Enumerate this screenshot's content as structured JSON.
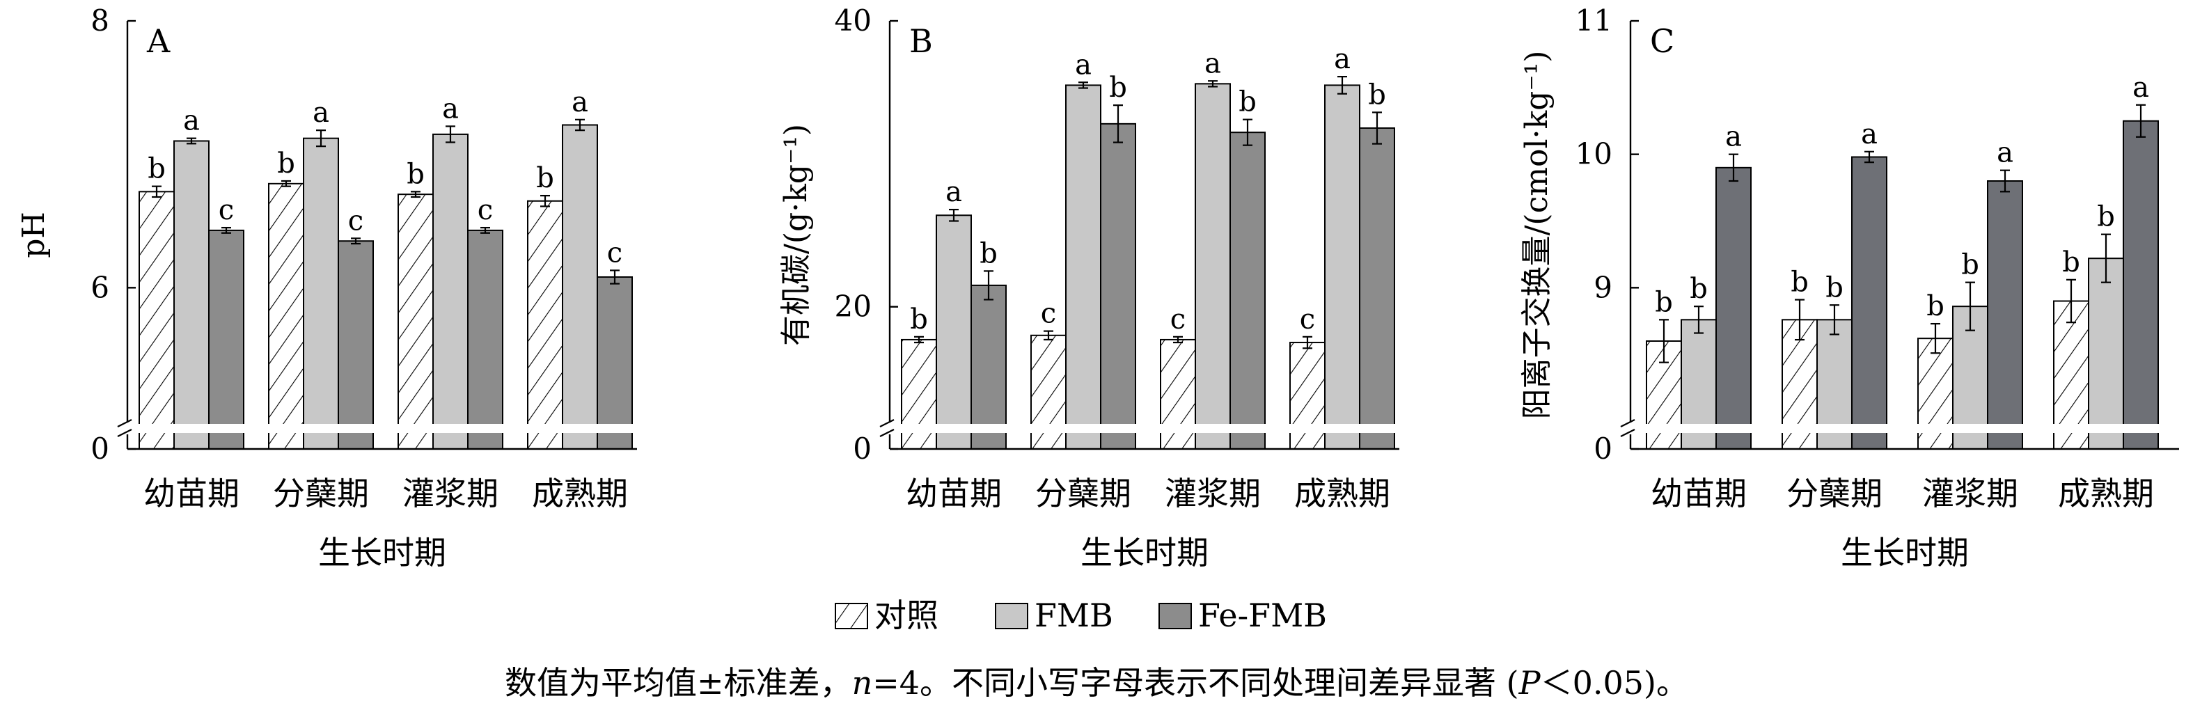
{
  "legend": [
    {
      "label": "对照",
      "style": "hatch"
    },
    {
      "label": "FMB",
      "color": "#c8c8c8"
    },
    {
      "label": "Fe-FMB",
      "color": "#8c8c8c"
    }
  ],
  "caption": {
    "p1": "数值为平均值±标准差，",
    "n_var": "n",
    "p2": "=4。不同小写字母表示不同处理间差异显著 (",
    "p_var": "P",
    "p3": "＜0.05)。"
  },
  "chart_data": [
    {
      "type": "bar",
      "panel": "A",
      "ylabel": "pH",
      "xlabel": "生长时期",
      "categories": [
        "幼苗期",
        "分蘖期",
        "灌浆期",
        "成熟期"
      ],
      "yticks": [
        "0",
        "6",
        "8"
      ],
      "scale": {
        "break_value": 0,
        "low": 5.0,
        "high": 8.0
      },
      "series_colors": [
        "#ffffff",
        "#c8c8c8",
        "#8c8c8c"
      ],
      "series": [
        {
          "name": "对照",
          "values": [
            6.72,
            6.78,
            6.7,
            6.65
          ],
          "errors": [
            0.04,
            0.02,
            0.02,
            0.04
          ],
          "letters": [
            "b",
            "b",
            "b",
            "b"
          ]
        },
        {
          "name": "FMB",
          "values": [
            7.1,
            7.12,
            7.15,
            7.22
          ],
          "errors": [
            0.02,
            0.06,
            0.06,
            0.04
          ],
          "letters": [
            "a",
            "a",
            "a",
            "a"
          ]
        },
        {
          "name": "Fe-FMB",
          "values": [
            6.43,
            6.35,
            6.43,
            6.08
          ],
          "errors": [
            0.02,
            0.02,
            0.02,
            0.05
          ],
          "letters": [
            "c",
            "c",
            "c",
            "c"
          ]
        }
      ]
    },
    {
      "type": "bar",
      "panel": "B",
      "ylabel": "有机碳/(g·kg⁻¹)",
      "xlabel": "生长时期",
      "categories": [
        "幼苗期",
        "分蘖期",
        "灌浆期",
        "成熟期"
      ],
      "yticks": [
        "0",
        "20",
        "40"
      ],
      "scale": {
        "break_value": 0,
        "low": 12.0,
        "high": 40.0
      },
      "series_colors": [
        "#ffffff",
        "#c8c8c8",
        "#8c8c8c"
      ],
      "series": [
        {
          "name": "对照",
          "values": [
            17.7,
            18.0,
            17.7,
            17.5
          ],
          "errors": [
            0.2,
            0.3,
            0.2,
            0.4
          ],
          "letters": [
            "b",
            "c",
            "c",
            "c"
          ]
        },
        {
          "name": "FMB",
          "values": [
            26.4,
            35.5,
            35.6,
            35.5
          ],
          "errors": [
            0.4,
            0.2,
            0.2,
            0.6
          ],
          "letters": [
            "a",
            "a",
            "a",
            "a"
          ]
        },
        {
          "name": "Fe-FMB",
          "values": [
            21.5,
            32.8,
            32.2,
            32.5
          ],
          "errors": [
            1.0,
            1.3,
            0.9,
            1.1
          ],
          "letters": [
            "b",
            "b",
            "b",
            "b"
          ]
        }
      ]
    },
    {
      "type": "bar",
      "panel": "C",
      "ylabel": "阳离子交换量/(cmol·kg⁻¹)",
      "xlabel": "生长时期",
      "categories": [
        "幼苗期",
        "分蘖期",
        "灌浆期",
        "成熟期"
      ],
      "yticks": [
        "0",
        "9",
        "10",
        "11"
      ],
      "scale": {
        "break_value": 0,
        "low": 8.0,
        "high": 11.0
      },
      "series_colors": [
        "#ffffff",
        "#c8c8c8",
        "#6e7076"
      ],
      "series": [
        {
          "name": "对照",
          "values": [
            8.6,
            8.76,
            8.62,
            8.9
          ],
          "errors": [
            0.16,
            0.15,
            0.11,
            0.16
          ],
          "letters": [
            "b",
            "b",
            "b",
            "b"
          ]
        },
        {
          "name": "FMB",
          "values": [
            8.76,
            8.76,
            8.86,
            9.22
          ],
          "errors": [
            0.1,
            0.11,
            0.18,
            0.18
          ],
          "letters": [
            "b",
            "b",
            "b",
            "b"
          ]
        },
        {
          "name": "Fe-FMB",
          "values": [
            9.9,
            9.98,
            9.8,
            10.25
          ],
          "errors": [
            0.1,
            0.04,
            0.08,
            0.12
          ],
          "letters": [
            "a",
            "a",
            "a",
            "a"
          ]
        }
      ]
    }
  ]
}
